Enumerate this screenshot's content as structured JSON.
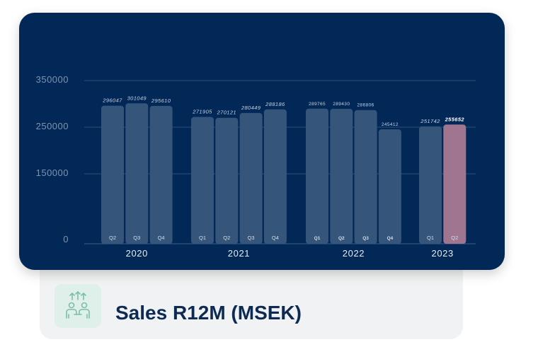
{
  "chart_data": {
    "type": "bar",
    "title": "Sales R12M (MSEK)",
    "y_ticks": [
      "350000",
      "250000",
      "150000",
      "0"
    ],
    "groups": [
      {
        "label": "2020",
        "bars": [
          {
            "q": "Q2",
            "value": 296047,
            "value_label": "296047"
          },
          {
            "q": "Q3",
            "value": 301049,
            "value_label": "301049"
          },
          {
            "q": "Q4",
            "value": 295610,
            "value_label": "295610"
          }
        ]
      },
      {
        "label": "2021",
        "bars": [
          {
            "q": "Q1",
            "value": 271905,
            "value_label": "271905"
          },
          {
            "q": "Q2",
            "value": 270121,
            "value_label": "270121"
          },
          {
            "q": "Q3",
            "value": 280449,
            "value_label": "280449"
          },
          {
            "q": "Q4",
            "value": 288186,
            "value_label": "288186"
          }
        ]
      },
      {
        "label": "2022",
        "bars": [
          {
            "q": "Q1",
            "value": 289765,
            "value_label": "289765"
          },
          {
            "q": "Q2",
            "value": 289430,
            "value_label": "289430"
          },
          {
            "q": "Q3",
            "value": 286806,
            "value_label": "286806"
          },
          {
            "q": "Q4",
            "value": 245412,
            "value_label": "245412"
          }
        ]
      },
      {
        "label": "2023",
        "bars": [
          {
            "q": "Q1",
            "value": 251742,
            "value_label": "251742"
          },
          {
            "q": "Q2",
            "value": 255652,
            "value_label": "255652",
            "highlight": true
          }
        ]
      }
    ],
    "colors": {
      "background": "#022857",
      "bar": "#36557a",
      "highlight_bar": "#a07590",
      "text": "#c9d3e0"
    }
  },
  "footer": {
    "title": "Sales R12M (MSEK)",
    "icon": "team-growth-icon"
  }
}
